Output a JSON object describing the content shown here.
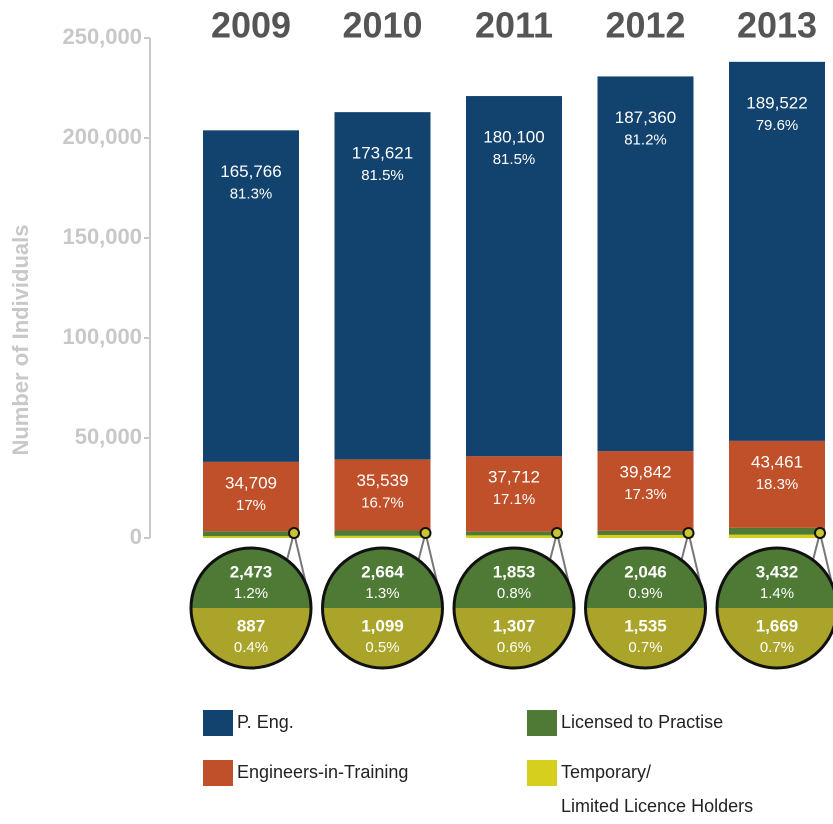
{
  "chart_data": {
    "type": "stacked_bar",
    "y_label": "Number of Individuals",
    "categories": [
      "2009",
      "2010",
      "2011",
      "2012",
      "2013"
    ],
    "ylim": [
      0,
      250000
    ],
    "yticks": [
      0,
      {
        "value": 50000,
        "label": "50,000"
      },
      {
        "value": 100000,
        "label": "100,000"
      },
      {
        "value": 150000,
        "label": "150,000"
      },
      {
        "value": 200000,
        "label": "200,000"
      },
      {
        "value": 250000,
        "label": "250,000"
      }
    ],
    "series": [
      {
        "name": "Temporary/\nLimited Licence Holders",
        "color": "#d6cf1e",
        "values": [
          887,
          1099,
          1307,
          1535,
          1669
        ],
        "value_labels": [
          "887",
          "1,099",
          "1,307",
          "1,535",
          "1,669"
        ],
        "percents": [
          0.4,
          0.5,
          0.6,
          0.7,
          0.7
        ],
        "percent_labels": [
          "0.4%",
          "0.5%",
          "0.6%",
          "0.7%",
          "0.7%"
        ]
      },
      {
        "name": "Licensed to Practise",
        "color": "#4e7a35",
        "values": [
          2473,
          2664,
          1853,
          2046,
          3432
        ],
        "value_labels": [
          "2,473",
          "2,664",
          "1,853",
          "2,046",
          "3,432"
        ],
        "percents": [
          1.2,
          1.3,
          0.8,
          0.9,
          1.4
        ],
        "percent_labels": [
          "1.2%",
          "1.3%",
          "0.8%",
          "0.9%",
          "1.4%"
        ]
      },
      {
        "name": "Engineers-in-Training",
        "color": "#c0502a",
        "values": [
          34709,
          35539,
          37712,
          39842,
          43461
        ],
        "value_labels": [
          "34,709",
          "35,539",
          "37,712",
          "39,842",
          "43,461"
        ],
        "percents": [
          17,
          16.7,
          17.1,
          17.3,
          18.3
        ],
        "percent_labels": [
          "17%",
          "16.7%",
          "17.1%",
          "17.3%",
          "18.3%"
        ]
      },
      {
        "name": "P. Eng.",
        "color": "#12426e",
        "values": [
          165766,
          173621,
          180100,
          187360,
          189522
        ],
        "value_labels": [
          "165,766",
          "173,621",
          "180,100",
          "187,360",
          "189,522"
        ],
        "percents": [
          81.3,
          81.5,
          81.5,
          81.2,
          79.6
        ],
        "percent_labels": [
          "81.3%",
          "81.5%",
          "81.5%",
          "81.2%",
          "79.6%"
        ]
      }
    ]
  }
}
